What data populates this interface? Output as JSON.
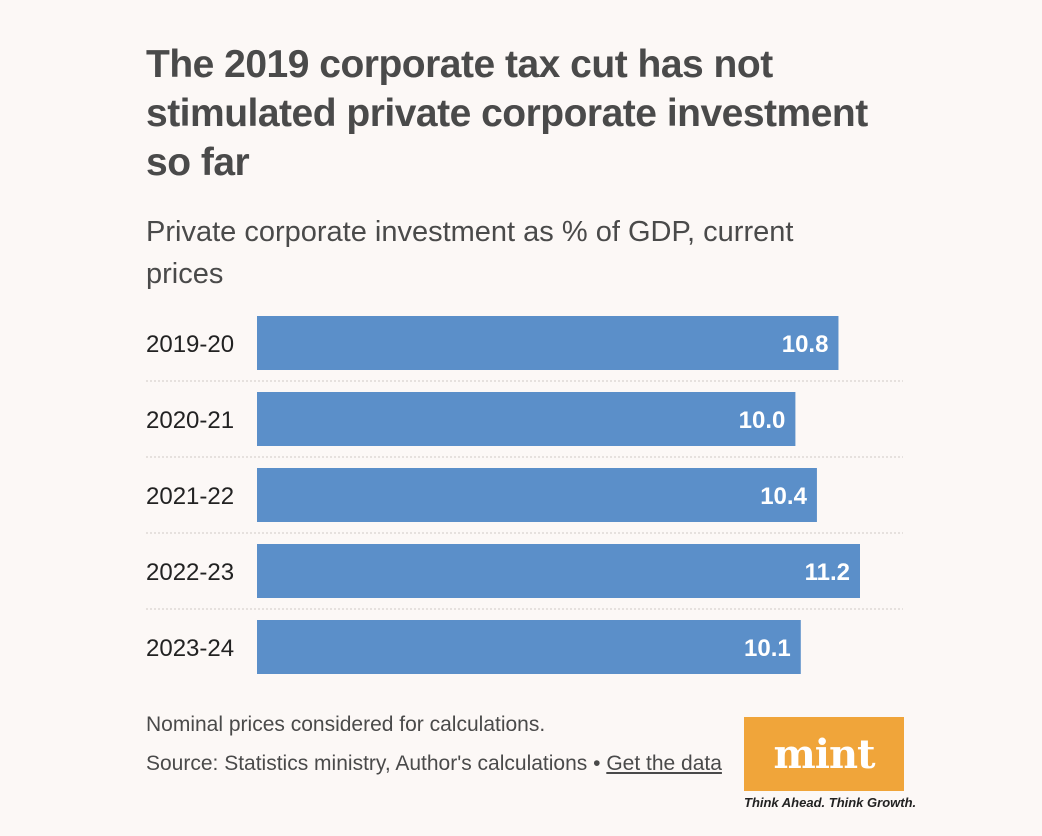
{
  "header": {
    "title": "The 2019 corporate tax cut has not stimulated private corporate investment so far",
    "subtitle": "Private corporate investment as % of GDP, current prices"
  },
  "chart_data": {
    "type": "bar",
    "orientation": "horizontal",
    "title": "The 2019 corporate tax cut has not stimulated private corporate investment so far",
    "subtitle": "Private corporate investment as % of GDP, current prices",
    "categories": [
      "2019-20",
      "2020-21",
      "2021-22",
      "2022-23",
      "2023-24"
    ],
    "values": [
      10.8,
      10.0,
      10.4,
      11.2,
      10.1
    ],
    "value_labels": [
      "10.8",
      "10.0",
      "10.4",
      "11.2",
      "10.1"
    ],
    "xlim": [
      0,
      11.2
    ],
    "xlabel": "",
    "ylabel": "",
    "grid": false,
    "bar_color": "#5b8fc9",
    "separator_color": "#cfcac7"
  },
  "footer": {
    "note": "Nominal prices considered for calculations.",
    "source_prefix": "Source: Statistics ministry, Author's calculations • ",
    "source_link": "Get the data"
  },
  "logo": {
    "name": "mint",
    "tagline": "Think Ahead. Think Growth.",
    "color": "#f0a53a"
  }
}
